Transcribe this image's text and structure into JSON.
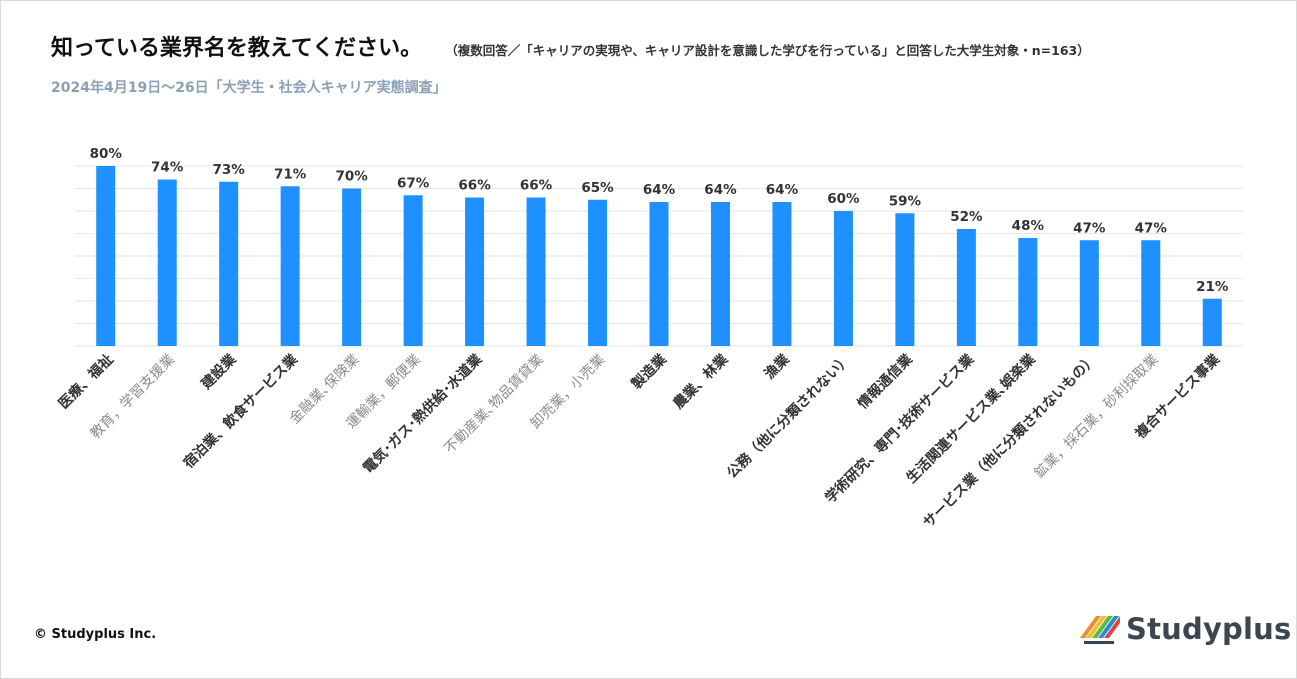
{
  "header": {
    "title": "知っている業界名を教えてください。",
    "note": "（複数回答／「キャリアの実現や、キャリア設計を意識した学びを行っている」と回答した大学生対象・n=163）",
    "subtitle": "2024年4月19日～26日「大学生・社会人キャリア実態調査」"
  },
  "footer": {
    "copyright": "© Studyplus Inc.",
    "brand": "Studyplus"
  },
  "colors": {
    "bar": "#1e90ff",
    "grid": "#e3e6ea",
    "highlight_label": "#333333",
    "muted_label": "#8a8a8a",
    "brand_stripes": [
      "#f28a2e",
      "#e9c333",
      "#59b947",
      "#2c8ad3",
      "#e2443c"
    ]
  },
  "chart_data": {
    "type": "bar",
    "ylim": [
      0,
      80
    ],
    "grid": true,
    "categories": [
      "医療、福祉",
      "教育，学習支援業",
      "建設業",
      "宿泊業、飲食サービス業",
      "金融業､保険業",
      "運輸業，郵便業",
      "電気･ガス･熱供給･水道業",
      "不動産業､物品賃貸業",
      "卸売業，小売業",
      "製造業",
      "農業、林業",
      "漁業",
      "公務（他に分類されない）",
      "情報通信業",
      "学術研究、専門･技術サービス業",
      "生活関連サービス業､娯楽業",
      "サービス業（他に分類されないもの）",
      "鉱業，採石業，砂利採取業",
      "複合サービス事業"
    ],
    "values": [
      80,
      74,
      73,
      71,
      70,
      67,
      66,
      66,
      65,
      64,
      64,
      64,
      60,
      59,
      52,
      48,
      47,
      47,
      21
    ],
    "value_labels": [
      "80%",
      "74%",
      "73%",
      "71%",
      "70%",
      "67%",
      "66%",
      "66%",
      "65%",
      "64%",
      "64%",
      "64%",
      "60%",
      "59%",
      "52%",
      "48%",
      "47%",
      "47%",
      "21%"
    ],
    "label_emphasis": [
      true,
      false,
      true,
      true,
      false,
      false,
      true,
      false,
      false,
      true,
      true,
      true,
      true,
      true,
      true,
      true,
      true,
      false,
      true
    ]
  }
}
